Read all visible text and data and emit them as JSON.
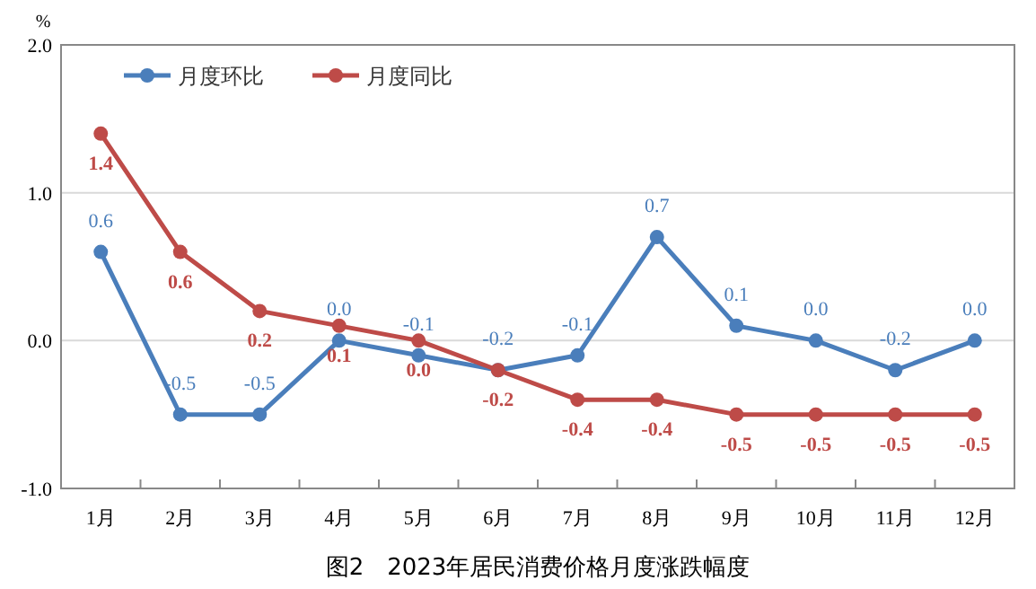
{
  "chart_data": {
    "type": "line",
    "title": "图2　2023年居民消费价格月度涨跌幅度",
    "ylabel": "%",
    "categories": [
      "1月",
      "2月",
      "3月",
      "4月",
      "5月",
      "6月",
      "7月",
      "8月",
      "9月",
      "10月",
      "11月",
      "12月"
    ],
    "series": [
      {
        "name": "月度环比",
        "color": "#4a7ebb",
        "values": [
          0.6,
          -0.5,
          -0.5,
          0.0,
          -0.1,
          -0.2,
          -0.1,
          0.7,
          0.1,
          0.0,
          -0.2,
          0.0
        ],
        "value_labels": [
          "0.6",
          "-0.5",
          "-0.5",
          "0.0",
          "-0.1",
          "-0.2",
          "-0.1",
          "0.7",
          "0.1",
          "0.0",
          "-0.2",
          "0.0"
        ]
      },
      {
        "name": "月度同比",
        "color": "#be4b48",
        "values": [
          1.4,
          0.6,
          0.2,
          0.1,
          0.0,
          -0.2,
          -0.4,
          -0.4,
          -0.5,
          -0.5,
          -0.5,
          -0.5
        ],
        "value_labels": [
          "1.4",
          "0.6",
          "0.2",
          "0.1",
          "0.0",
          "-0.2",
          "-0.4",
          "-0.4",
          "-0.5",
          "-0.5",
          "-0.5",
          "-0.5"
        ]
      }
    ],
    "ylim": [
      -1.0,
      2.0
    ],
    "yticks": [
      {
        "value": -1,
        "label": "-1.0"
      },
      {
        "value": 0,
        "label": "0.0"
      },
      {
        "value": 1,
        "label": "1.0"
      },
      {
        "value": 2,
        "label": "2.0"
      }
    ],
    "grid": "y",
    "legend": "top left",
    "marker": "circle",
    "line_style": "solid"
  }
}
